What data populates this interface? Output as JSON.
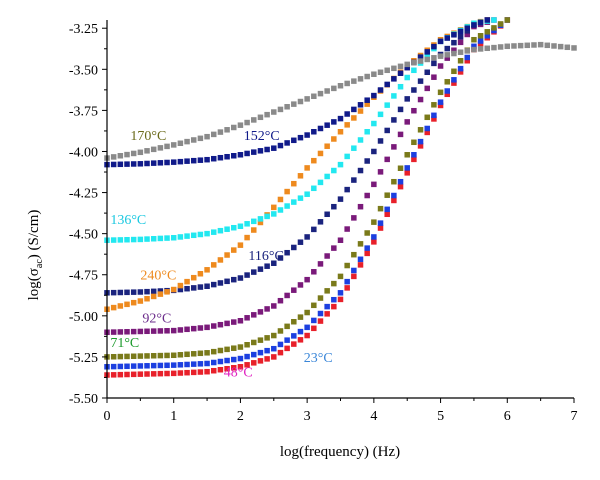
{
  "chart_data": {
    "type": "scatter",
    "xlabel": "log(frequency) (Hz)",
    "ylabel": "log(σ",
    "ylabel_sub": "ac",
    "ylabel_unit": ") (S/cm)",
    "xlim": [
      0,
      7
    ],
    "ylim": [
      -5.5,
      -3.2
    ],
    "x_ticks": [
      0,
      1,
      2,
      3,
      4,
      5,
      6,
      7
    ],
    "x_tick_labels": [
      "0",
      "1",
      "2",
      "3",
      "4",
      "5",
      "6",
      "7"
    ],
    "y_ticks": [
      -5.5,
      -5.25,
      -5.0,
      -4.75,
      -4.5,
      -4.25,
      -4.0,
      -3.75,
      -3.5,
      -3.25
    ],
    "y_tick_labels": [
      "-5.50",
      "-5.25",
      "-5.00",
      "-4.75",
      "-4.50",
      "-4.25",
      "-4.00",
      "-3.75",
      "-3.50",
      "-3.25"
    ],
    "grid": false,
    "marker": "square",
    "series": [
      {
        "name": "48°C",
        "color": "#e8202a",
        "label_color": "#e020c0",
        "x_anchor": 1.75,
        "y_anchor": -5.37,
        "points": [
          [
            0,
            -5.36
          ],
          [
            0.5,
            -5.355
          ],
          [
            1,
            -5.35
          ],
          [
            1.5,
            -5.34
          ],
          [
            2,
            -5.31
          ],
          [
            2.5,
            -5.25
          ],
          [
            3,
            -5.12
          ],
          [
            3.5,
            -4.9
          ],
          [
            4,
            -4.55
          ],
          [
            4.5,
            -4.13
          ],
          [
            5,
            -3.72
          ],
          [
            5.5,
            -3.38
          ],
          [
            6,
            -3.2
          ]
        ]
      },
      {
        "name": "23°C",
        "color": "#1c3fe0",
        "label_color": "#3a86d8",
        "x_anchor": 2.95,
        "y_anchor": -5.28,
        "points": [
          [
            0,
            -5.31
          ],
          [
            0.5,
            -5.305
          ],
          [
            1,
            -5.3
          ],
          [
            1.5,
            -5.29
          ],
          [
            2,
            -5.26
          ],
          [
            2.5,
            -5.2
          ],
          [
            3,
            -5.07
          ],
          [
            3.5,
            -4.86
          ],
          [
            4,
            -4.52
          ],
          [
            4.5,
            -4.1
          ],
          [
            5,
            -3.7
          ],
          [
            5.5,
            -3.36
          ],
          [
            6,
            -3.2
          ]
        ]
      },
      {
        "name": "71°C",
        "color": "#7a7a1a",
        "label_color": "#1a9a2a",
        "x_anchor": 0.05,
        "y_anchor": -5.19,
        "points": [
          [
            0,
            -5.25
          ],
          [
            0.5,
            -5.245
          ],
          [
            1,
            -5.24
          ],
          [
            1.5,
            -5.225
          ],
          [
            2,
            -5.19
          ],
          [
            2.5,
            -5.12
          ],
          [
            3,
            -4.98
          ],
          [
            3.5,
            -4.76
          ],
          [
            4,
            -4.43
          ],
          [
            4.5,
            -4.02
          ],
          [
            5,
            -3.64
          ],
          [
            5.5,
            -3.32
          ],
          [
            6,
            -3.2
          ]
        ]
      },
      {
        "name": "92°C",
        "color": "#7a1a7a",
        "label_color": "#6a2a8a",
        "x_anchor": 0.53,
        "y_anchor": -5.04,
        "points": [
          [
            0,
            -5.1
          ],
          [
            0.5,
            -5.095
          ],
          [
            1,
            -5.09
          ],
          [
            1.5,
            -5.07
          ],
          [
            2,
            -5.03
          ],
          [
            2.5,
            -4.94
          ],
          [
            3,
            -4.78
          ],
          [
            3.5,
            -4.54
          ],
          [
            4,
            -4.2
          ],
          [
            4.5,
            -3.82
          ],
          [
            5,
            -3.48
          ],
          [
            5.5,
            -3.24
          ],
          [
            5.8,
            -3.2
          ]
        ]
      },
      {
        "name": "116°C",
        "color": "#1a237e",
        "label_color": "#1a237e",
        "x_anchor": 2.12,
        "y_anchor": -4.66,
        "points": [
          [
            0,
            -4.86
          ],
          [
            0.5,
            -4.855
          ],
          [
            1,
            -4.845
          ],
          [
            1.5,
            -4.82
          ],
          [
            2,
            -4.77
          ],
          [
            2.5,
            -4.68
          ],
          [
            3,
            -4.52
          ],
          [
            3.5,
            -4.29
          ],
          [
            4,
            -4.0
          ],
          [
            4.5,
            -3.68
          ],
          [
            5,
            -3.41
          ],
          [
            5.5,
            -3.23
          ],
          [
            5.7,
            -3.2
          ]
        ]
      },
      {
        "name": "240°C",
        "color": "#ee8a1e",
        "label_color": "#ee8a1e",
        "x_anchor": 0.5,
        "y_anchor": -4.78,
        "points": [
          [
            0,
            -4.96
          ],
          [
            0.5,
            -4.91
          ],
          [
            1,
            -4.84
          ],
          [
            1.5,
            -4.72
          ],
          [
            2,
            -4.57
          ],
          [
            2.5,
            -4.34
          ],
          [
            3,
            -4.1
          ],
          [
            3.5,
            -3.88
          ],
          [
            4,
            -3.67
          ],
          [
            4.5,
            -3.48
          ],
          [
            5,
            -3.32
          ],
          [
            5.5,
            -3.22
          ],
          [
            5.7,
            -3.2
          ]
        ]
      },
      {
        "name": "136°C",
        "color": "#22e8f0",
        "label_color": "#1ac8e0",
        "x_anchor": 0.05,
        "y_anchor": -4.44,
        "points": [
          [
            0,
            -4.54
          ],
          [
            0.5,
            -4.535
          ],
          [
            1,
            -4.525
          ],
          [
            1.5,
            -4.5
          ],
          [
            2,
            -4.455
          ],
          [
            2.5,
            -4.38
          ],
          [
            3,
            -4.26
          ],
          [
            3.5,
            -4.08
          ],
          [
            4,
            -3.83
          ],
          [
            4.5,
            -3.55
          ],
          [
            5,
            -3.33
          ],
          [
            5.5,
            -3.22
          ],
          [
            5.8,
            -3.2
          ]
        ]
      },
      {
        "name": "152°C",
        "color": "#101a8a",
        "label_color": "#101a8a",
        "x_anchor": 2.05,
        "y_anchor": -3.93,
        "points": [
          [
            0,
            -4.08
          ],
          [
            0.5,
            -4.075
          ],
          [
            1,
            -4.065
          ],
          [
            1.5,
            -4.05
          ],
          [
            2,
            -4.02
          ],
          [
            2.5,
            -3.98
          ],
          [
            3,
            -3.9
          ],
          [
            3.5,
            -3.8
          ],
          [
            4,
            -3.66
          ],
          [
            4.5,
            -3.49
          ],
          [
            5,
            -3.33
          ],
          [
            5.5,
            -3.23
          ],
          [
            5.7,
            -3.2
          ]
        ]
      },
      {
        "name": "170°C",
        "color": "#8a8a8a",
        "label_color": "#6a6a1a",
        "x_anchor": 0.35,
        "y_anchor": -3.93,
        "points": [
          [
            0,
            -4.04
          ],
          [
            0.5,
            -4.005
          ],
          [
            1,
            -3.96
          ],
          [
            1.5,
            -3.91
          ],
          [
            2,
            -3.84
          ],
          [
            2.5,
            -3.76
          ],
          [
            3,
            -3.68
          ],
          [
            3.5,
            -3.6
          ],
          [
            4,
            -3.53
          ],
          [
            4.5,
            -3.47
          ],
          [
            5,
            -3.42
          ],
          [
            5.5,
            -3.38
          ],
          [
            6,
            -3.36
          ],
          [
            6.5,
            -3.35
          ],
          [
            7,
            -3.37
          ]
        ]
      }
    ]
  }
}
